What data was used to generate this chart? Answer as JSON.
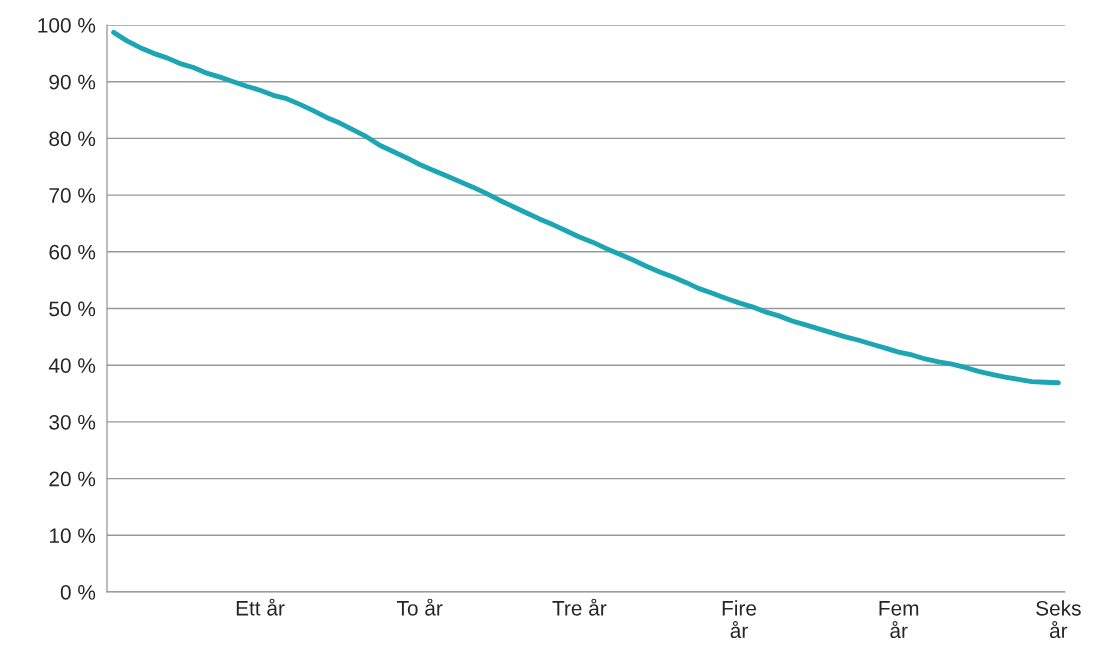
{
  "chart_data": {
    "type": "line",
    "categories": [
      null,
      null,
      null,
      null,
      null,
      null,
      null,
      null,
      null,
      null,
      null,
      "Ett år",
      null,
      null,
      null,
      null,
      null,
      null,
      null,
      null,
      null,
      null,
      null,
      "To år",
      null,
      null,
      null,
      null,
      null,
      null,
      null,
      null,
      null,
      null,
      null,
      "Tre år",
      null,
      null,
      null,
      null,
      null,
      null,
      null,
      null,
      null,
      null,
      null,
      "Fire\når",
      null,
      null,
      null,
      null,
      null,
      null,
      null,
      null,
      null,
      null,
      null,
      "Fem\når",
      null,
      null,
      null,
      null,
      null,
      null,
      null,
      null,
      null,
      null,
      null,
      "Seks\når"
    ],
    "series": [
      {
        "color": "#1ca5b3",
        "values": [
          98.7,
          97.2,
          96.0,
          95.0,
          94.2,
          93.2,
          92.5,
          91.5,
          90.8,
          90.0,
          89.2,
          88.5,
          87.6,
          87.0,
          86.0,
          84.9,
          83.7,
          82.7,
          81.5,
          80.3,
          78.8,
          77.7,
          76.6,
          75.4,
          74.4,
          73.4,
          72.4,
          71.4,
          70.3,
          69.1,
          68.0,
          66.9,
          65.8,
          64.8,
          63.7,
          62.6,
          61.7,
          60.6,
          59.6,
          58.6,
          57.5,
          56.5,
          55.6,
          54.6,
          53.5,
          52.7,
          51.8,
          51.0,
          50.3,
          49.4,
          48.7,
          47.8,
          47.1,
          46.4,
          45.7,
          45.0,
          44.4,
          43.7,
          43.0,
          42.3,
          41.8,
          41.1,
          40.6,
          40.2,
          39.6,
          38.9,
          38.4,
          37.9,
          37.5,
          37.1,
          37.0,
          36.9
        ]
      }
    ],
    "ylim": [
      0,
      100
    ],
    "yticks": [
      {
        "value": 0,
        "label": "0 %"
      },
      {
        "value": 10,
        "label": "10 %"
      },
      {
        "value": 20,
        "label": "20 %"
      },
      {
        "value": 30,
        "label": "30 %"
      },
      {
        "value": 40,
        "label": "40 %"
      },
      {
        "value": 50,
        "label": "50 %"
      },
      {
        "value": 60,
        "label": "60 %"
      },
      {
        "value": 70,
        "label": "70 %"
      },
      {
        "value": 80,
        "label": "80 %"
      },
      {
        "value": 90,
        "label": "90 %"
      },
      {
        "value": 100,
        "label": "100 %"
      }
    ],
    "grid": "y",
    "marker": "none",
    "line_style": "solid"
  }
}
